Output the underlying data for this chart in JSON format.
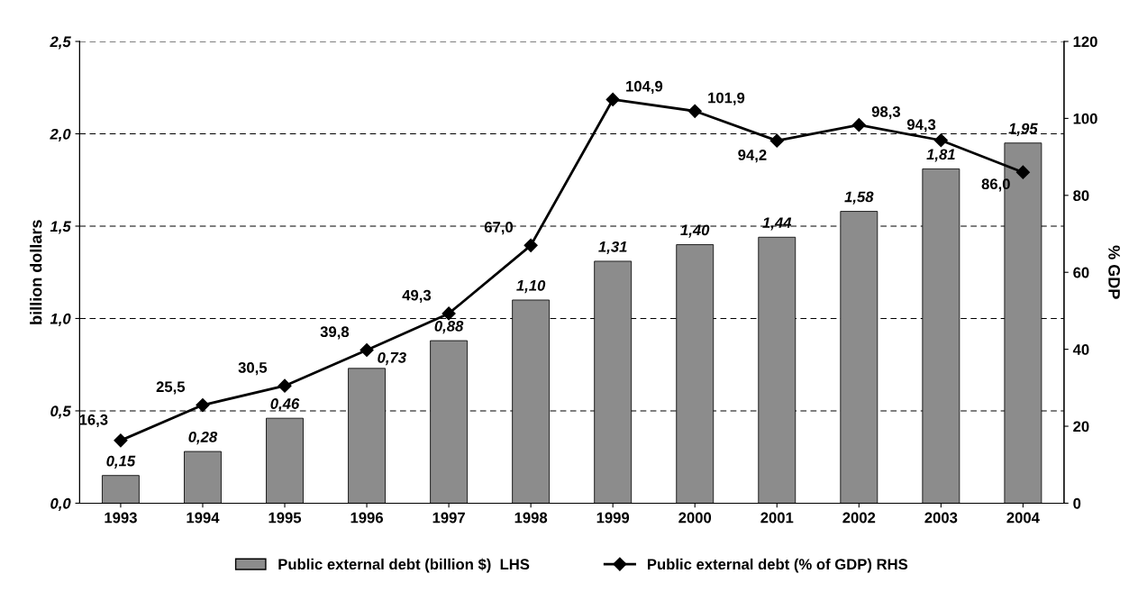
{
  "chart_data": {
    "type": "bar",
    "categories": [
      "1993",
      "1994",
      "1995",
      "1996",
      "1997",
      "1998",
      "1999",
      "2000",
      "2001",
      "2002",
      "2003",
      "2004"
    ],
    "ylabel": "billion dollars",
    "y2label": "% GDP",
    "series": [
      {
        "name": "Public external debt (billion $)  LHS",
        "color": "#8c8c8c",
        "values": [
          0.15,
          0.28,
          0.46,
          0.73,
          0.88,
          1.1,
          1.31,
          1.4,
          1.44,
          1.58,
          1.81,
          1.95
        ],
        "value_labels": [
          "0,15",
          "0,28",
          "0,46",
          "0,73",
          "0,88",
          "1,10",
          "1,31",
          "1,40",
          "1,44",
          "1,58",
          "1,81",
          "1,95"
        ]
      },
      {
        "name": "Public external debt (% of GDP) RHS",
        "type": "line",
        "axis": "y2",
        "color": "#000000",
        "marker": "diamond",
        "values": [
          16.3,
          25.5,
          30.5,
          39.8,
          49.3,
          67.0,
          104.9,
          101.9,
          94.2,
          98.3,
          94.3,
          86.0
        ],
        "value_labels": [
          "16,3",
          "25,5",
          "30,5",
          "39,8",
          "49,3",
          "67,0",
          "104,9",
          "101,9",
          "94,2",
          "98,3",
          "94,3",
          "86,0"
        ]
      }
    ],
    "ylim": [
      0,
      2.5
    ],
    "yticks": [
      {
        "value": 0,
        "label": "0,0"
      },
      {
        "value": 0.5,
        "label": "0,5"
      },
      {
        "value": 1.0,
        "label": "1,0"
      },
      {
        "value": 1.5,
        "label": "1,5"
      },
      {
        "value": 2.0,
        "label": "2,0"
      },
      {
        "value": 2.5,
        "label": "2,5"
      }
    ],
    "y2lim": [
      0,
      120
    ],
    "y2ticks": [
      0,
      20,
      40,
      60,
      80,
      100,
      120
    ],
    "grid": "y",
    "legend": "bottom"
  }
}
